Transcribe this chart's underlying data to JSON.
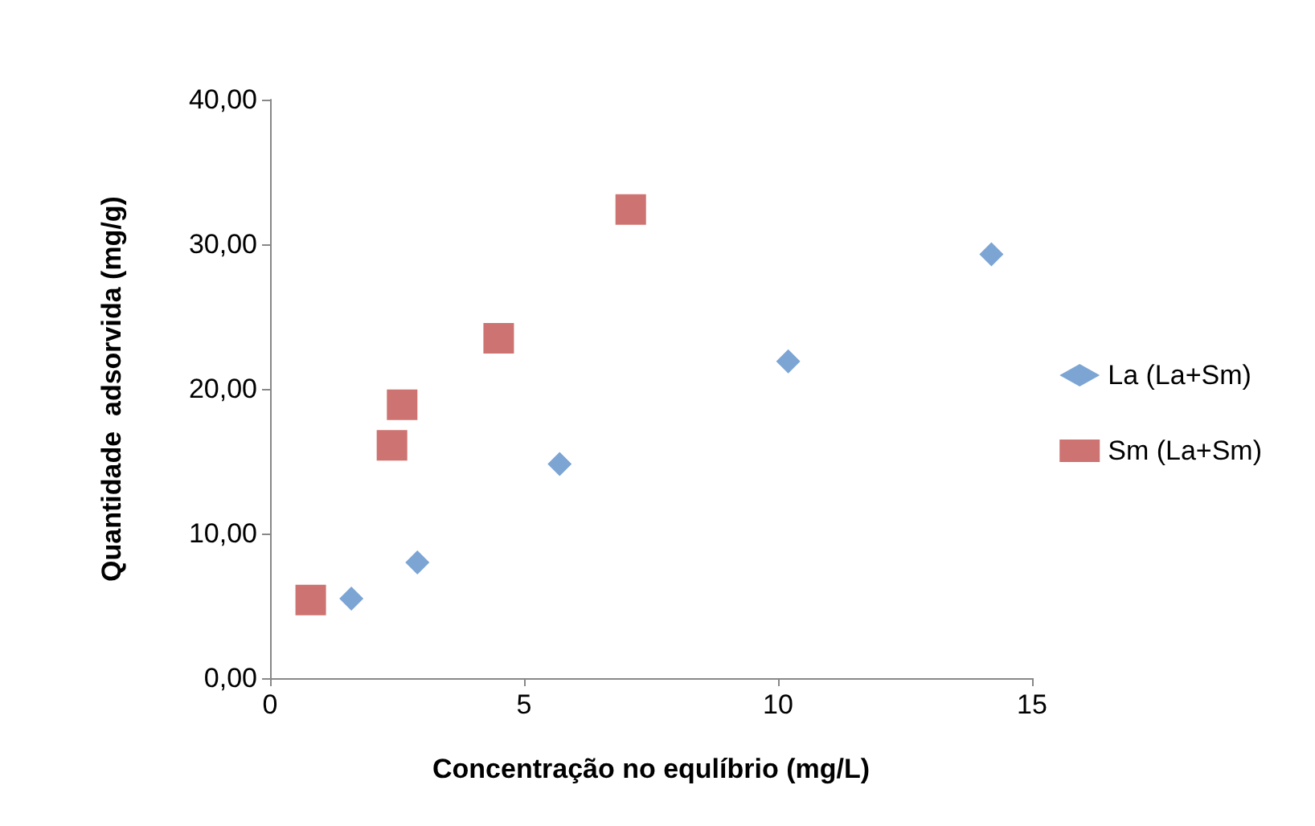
{
  "chart_data": {
    "type": "scatter",
    "xlabel": "Concentração no equlíbrio (mg/L)",
    "ylabel": "Quantidade  adsorvida (mg/g)",
    "series": [
      {
        "name": "La (La+Sm)",
        "color": "#5b8fc9",
        "marker": "diamond",
        "x": [
          1.6,
          2.9,
          5.7,
          10.2,
          14.2
        ],
        "values": [
          5.5,
          8.0,
          14.8,
          21.9,
          29.3
        ]
      },
      {
        "name": "Sm (La+Sm)",
        "color": "#c0504d",
        "marker": "square",
        "x": [
          0.8,
          2.4,
          2.6,
          4.5,
          7.1
        ],
        "values": [
          5.4,
          16.1,
          18.9,
          23.5,
          32.4
        ]
      }
    ],
    "xlim": [
      0,
      15
    ],
    "xticks": [
      0,
      5,
      10,
      15
    ],
    "ylim": [
      0,
      40
    ],
    "yticks": [
      {
        "value": 0,
        "label": "0,00"
      },
      {
        "value": 10,
        "label": "10,00"
      },
      {
        "value": 20,
        "label": "20,00"
      },
      {
        "value": 30,
        "label": "30,00"
      },
      {
        "value": 40,
        "label": "40,00"
      }
    ],
    "grid": false,
    "legend": "right"
  }
}
